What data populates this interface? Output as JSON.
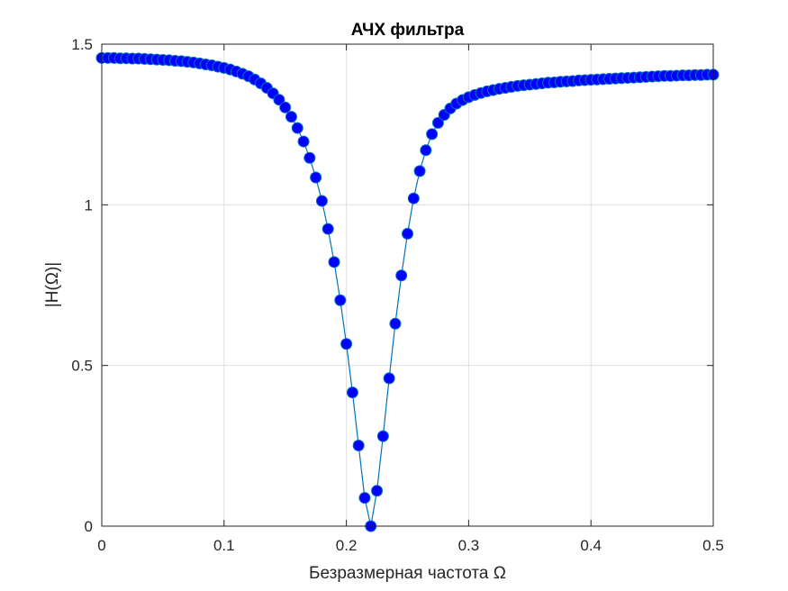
{
  "chart_data": {
    "type": "line",
    "title": "АЧХ фильтра",
    "xlabel": "Безразмерная частота Ω",
    "ylabel": "|H(Ω)|",
    "xlim": [
      0,
      0.5
    ],
    "ylim": [
      0,
      1.5
    ],
    "xticks": [
      0,
      0.1,
      0.2,
      0.3,
      0.4,
      0.5
    ],
    "xtick_labels": [
      "0",
      "0.1",
      "0.2",
      "0.3",
      "0.4",
      "0.5"
    ],
    "yticks": [
      0,
      0.5,
      1,
      1.5
    ],
    "ytick_labels": [
      "0",
      "0.5",
      "1",
      "1.5"
    ],
    "grid": true,
    "marker": "circle",
    "series": [
      {
        "line_color": "#0072BD",
        "marker_color": "#0000FF",
        "x": [
          0,
          0.005,
          0.01,
          0.015,
          0.02,
          0.025,
          0.03,
          0.035,
          0.04,
          0.045,
          0.05,
          0.055,
          0.06,
          0.065,
          0.07,
          0.075,
          0.08,
          0.085,
          0.09,
          0.095,
          0.1,
          0.105,
          0.11,
          0.115,
          0.12,
          0.125,
          0.13,
          0.135,
          0.14,
          0.145,
          0.15,
          0.155,
          0.16,
          0.165,
          0.17,
          0.175,
          0.18,
          0.185,
          0.19,
          0.195,
          0.2,
          0.205,
          0.21,
          0.215,
          0.22,
          0.225,
          0.23,
          0.235,
          0.24,
          0.245,
          0.25,
          0.255,
          0.26,
          0.265,
          0.27,
          0.275,
          0.28,
          0.285,
          0.29,
          0.295,
          0.3,
          0.305,
          0.31,
          0.315,
          0.32,
          0.325,
          0.33,
          0.335,
          0.34,
          0.345,
          0.35,
          0.355,
          0.36,
          0.365,
          0.37,
          0.375,
          0.38,
          0.385,
          0.39,
          0.395,
          0.4,
          0.405,
          0.41,
          0.415,
          0.42,
          0.425,
          0.43,
          0.435,
          0.44,
          0.445,
          0.45,
          0.455,
          0.46,
          0.465,
          0.47,
          0.475,
          0.48,
          0.485,
          0.49,
          0.495,
          0.5
        ],
        "y": [
          1.457,
          1.457,
          1.457,
          1.456,
          1.456,
          1.455,
          1.455,
          1.454,
          1.453,
          1.452,
          1.451,
          1.45,
          1.448,
          1.447,
          1.445,
          1.443,
          1.44,
          1.437,
          1.434,
          1.43,
          1.426,
          1.421,
          1.415,
          1.408,
          1.4,
          1.39,
          1.378,
          1.364,
          1.347,
          1.327,
          1.303,
          1.274,
          1.239,
          1.197,
          1.146,
          1.085,
          1.012,
          0.925,
          0.822,
          0.703,
          0.567,
          0.416,
          0.251,
          0.088,
          0.0,
          0.11,
          0.28,
          0.46,
          0.63,
          0.78,
          0.91,
          1.02,
          1.105,
          1.17,
          1.22,
          1.255,
          1.28,
          1.3,
          1.315,
          1.326,
          1.335,
          1.342,
          1.348,
          1.353,
          1.357,
          1.361,
          1.364,
          1.367,
          1.37,
          1.372,
          1.374,
          1.376,
          1.378,
          1.38,
          1.381,
          1.383,
          1.384,
          1.385,
          1.387,
          1.388,
          1.389,
          1.39,
          1.391,
          1.392,
          1.393,
          1.394,
          1.395,
          1.396,
          1.397,
          1.398,
          1.399,
          1.4,
          1.401,
          1.401,
          1.402,
          1.403,
          1.403,
          1.404,
          1.404,
          1.405,
          1.405
        ]
      }
    ]
  }
}
